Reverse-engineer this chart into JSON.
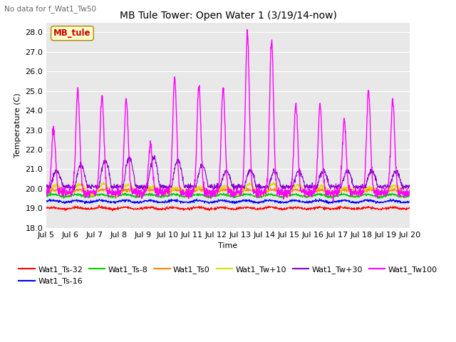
{
  "title": "MB Tule Tower: Open Water 1 (3/19/14-now)",
  "suptitle": "No data for f_Wat1_Tw50",
  "xlabel": "Time",
  "ylabel": "Temperature (C)",
  "ylim": [
    18.0,
    28.5
  ],
  "yticks": [
    18.0,
    19.0,
    20.0,
    21.0,
    22.0,
    23.0,
    24.0,
    25.0,
    26.0,
    27.0,
    28.0
  ],
  "xtick_labels": [
    "Jul 5",
    "Jul 6",
    "Jul 7",
    "Jul 8",
    "Jul 9",
    "Jul 10",
    "Jul 11",
    "Jul 12",
    "Jul 13",
    "Jul 14",
    "Jul 15",
    "Jul 16",
    "Jul 17",
    "Jul 18",
    "Jul 19",
    "Jul 20"
  ],
  "background_color": "#e8e8e8",
  "series": {
    "Wat1_Ts-32": {
      "color": "#ff0000",
      "lw": 0.8
    },
    "Wat1_Ts-16": {
      "color": "#0000ff",
      "lw": 0.8
    },
    "Wat1_Ts-8": {
      "color": "#00cc00",
      "lw": 0.8
    },
    "Wat1_Ts0": {
      "color": "#ff8800",
      "lw": 0.8
    },
    "Wat1_Tw+10": {
      "color": "#dddd00",
      "lw": 0.8
    },
    "Wat1_Tw+30": {
      "color": "#8800cc",
      "lw": 0.8
    },
    "Wat1_Tw100": {
      "color": "#ff00ff",
      "lw": 1.0
    }
  },
  "watermark_label": "MB_tule",
  "watermark_color": "#cc0000",
  "watermark_bg": "#ffffcc",
  "watermark_border": "#aa8800"
}
